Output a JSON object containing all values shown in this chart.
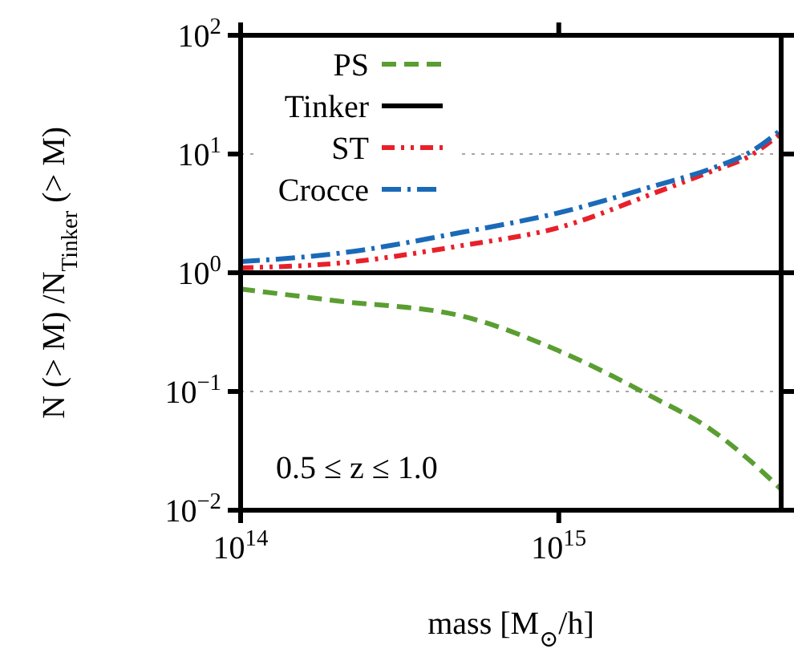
{
  "chart_data": {
    "type": "line",
    "xlabel": "mass [M$_{⊙}$/h]",
    "ylabel": "N (> M) /N$_{Tinker}$ (> M)",
    "log": "xy",
    "xlim": [
      100000000000000.0,
      5000000000000000.0
    ],
    "ylim": [
      0.01,
      100
    ],
    "xticks": [
      {
        "value": 100000000000000.0,
        "label": "10$^{14}$"
      },
      {
        "value": 1000000000000000.0,
        "label": "10$^{15}$"
      }
    ],
    "yticks": [
      {
        "value": 0.01,
        "label": "10$^{−2}$"
      },
      {
        "value": 0.1,
        "label": "10$^{−1}$"
      },
      {
        "value": 1,
        "label": "10$^{0}$"
      },
      {
        "value": 10,
        "label": "10$^{1}$"
      },
      {
        "value": 100,
        "label": "10$^{2}$"
      }
    ],
    "x": [
      100000000000000.0,
      200000000000000.0,
      500000000000000.0,
      1000000000000000.0,
      2000000000000000.0,
      3000000000000000.0,
      4000000000000000.0,
      5000000000000000.0
    ],
    "series": [
      {
        "name": "PS",
        "color": "#5a9e32",
        "line_style": "dashed",
        "values": [
          0.73,
          0.58,
          0.43,
          0.22,
          0.088,
          0.048,
          0.026,
          0.015
        ]
      },
      {
        "name": "Tinker",
        "color": "#000000",
        "line_style": "solid",
        "values": [
          1,
          1,
          1,
          1,
          1,
          1,
          1,
          1
        ]
      },
      {
        "name": "ST",
        "color": "#e8202a",
        "line_style": "dashdotdot",
        "values": [
          1.1,
          1.2,
          1.7,
          2.4,
          4.7,
          7.1,
          9.7,
          15
        ]
      },
      {
        "name": "Crocce",
        "color": "#1a6ab8",
        "line_style": "dashdot",
        "values": [
          1.24,
          1.45,
          2.2,
          3.2,
          5.4,
          7.5,
          10.4,
          16
        ]
      }
    ],
    "ref_lines": [
      {
        "axis": "y",
        "value": 10,
        "color": "#888888",
        "line_style": "dotted"
      },
      {
        "axis": "y",
        "value": 0.1,
        "color": "#888888",
        "line_style": "dotted"
      }
    ],
    "annotations": [
      "0.5 ≤ z ≤ 1.0"
    ],
    "legend": "top left",
    "grid": false
  }
}
